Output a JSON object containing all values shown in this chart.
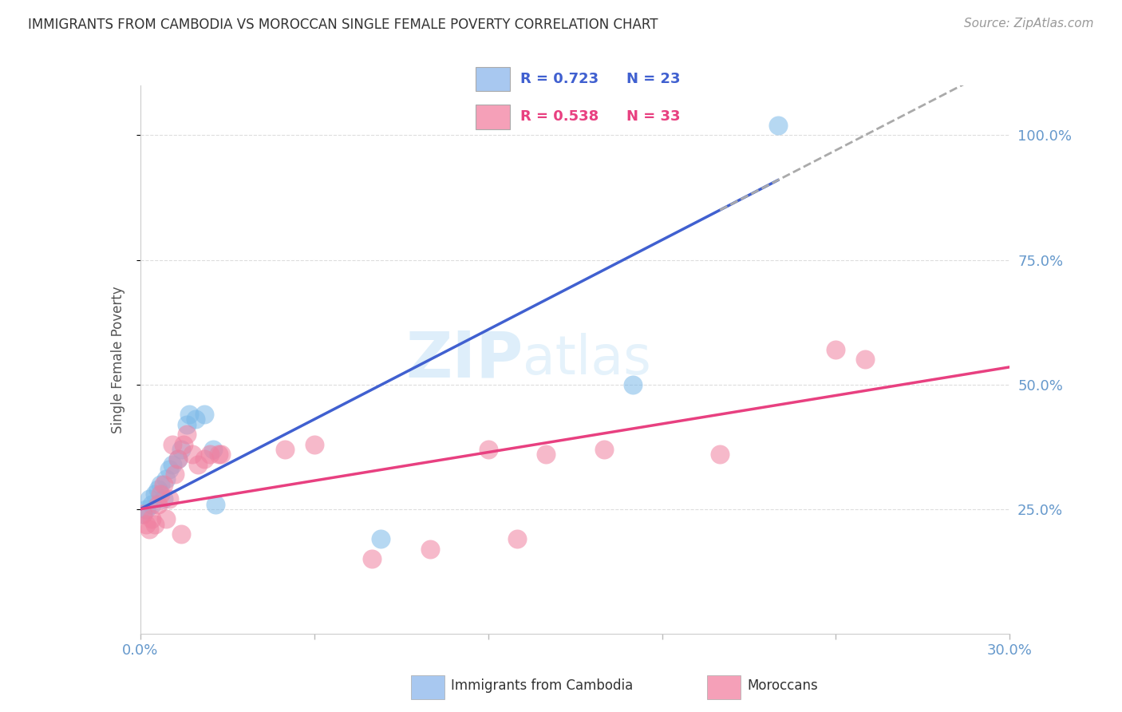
{
  "title": "IMMIGRANTS FROM CAMBODIA VS MOROCCAN SINGLE FEMALE POVERTY CORRELATION CHART",
  "source": "Source: ZipAtlas.com",
  "ylabel": "Single Female Poverty",
  "x_min": 0.0,
  "x_max": 0.3,
  "y_min": 0.0,
  "y_max": 1.1,
  "x_ticks": [
    0.0,
    0.06,
    0.12,
    0.18,
    0.24,
    0.3
  ],
  "y_ticks_right": [
    0.25,
    0.5,
    0.75,
    1.0
  ],
  "y_tick_labels_right": [
    "25.0%",
    "50.0%",
    "75.0%",
    "100.0%"
  ],
  "legend_color1": "#a8c8f0",
  "legend_color2": "#f5a0b8",
  "blue_color": "#7ab8e8",
  "pink_color": "#f080a0",
  "blue_line_color": "#4060d0",
  "pink_line_color": "#e84080",
  "watermark_zip": "ZIP",
  "watermark_atlas": "atlas",
  "grid_color": "#dddddd",
  "background_color": "#ffffff",
  "title_color": "#333333",
  "axis_label_color": "#6699cc",
  "right_axis_color": "#6699cc",
  "blue_regression": [
    0.25,
    3.0
  ],
  "pink_regression": [
    0.25,
    0.95
  ],
  "cambodia_x": [
    0.001,
    0.002,
    0.003,
    0.004,
    0.005,
    0.006,
    0.007,
    0.008,
    0.009,
    0.01,
    0.011,
    0.013,
    0.014,
    0.016,
    0.017,
    0.019,
    0.022,
    0.026,
    0.025,
    0.083,
    0.17,
    0.22
  ],
  "cambodia_y": [
    0.24,
    0.25,
    0.27,
    0.26,
    0.28,
    0.29,
    0.3,
    0.27,
    0.31,
    0.33,
    0.34,
    0.35,
    0.37,
    0.42,
    0.44,
    0.43,
    0.44,
    0.26,
    0.37,
    0.19,
    0.5,
    1.02
  ],
  "moroccan_x": [
    0.001,
    0.002,
    0.003,
    0.004,
    0.005,
    0.006,
    0.007,
    0.008,
    0.009,
    0.01,
    0.011,
    0.012,
    0.013,
    0.014,
    0.015,
    0.016,
    0.018,
    0.02,
    0.022,
    0.024,
    0.027,
    0.028,
    0.05,
    0.06,
    0.08,
    0.1,
    0.12,
    0.13,
    0.14,
    0.16,
    0.2,
    0.24,
    0.25
  ],
  "moroccan_y": [
    0.24,
    0.22,
    0.21,
    0.23,
    0.22,
    0.26,
    0.28,
    0.3,
    0.23,
    0.27,
    0.38,
    0.32,
    0.35,
    0.2,
    0.38,
    0.4,
    0.36,
    0.34,
    0.35,
    0.36,
    0.36,
    0.36,
    0.37,
    0.38,
    0.15,
    0.17,
    0.37,
    0.19,
    0.36,
    0.37,
    0.36,
    0.57,
    0.55
  ],
  "dot_size": 300,
  "dot_alpha": 0.55
}
